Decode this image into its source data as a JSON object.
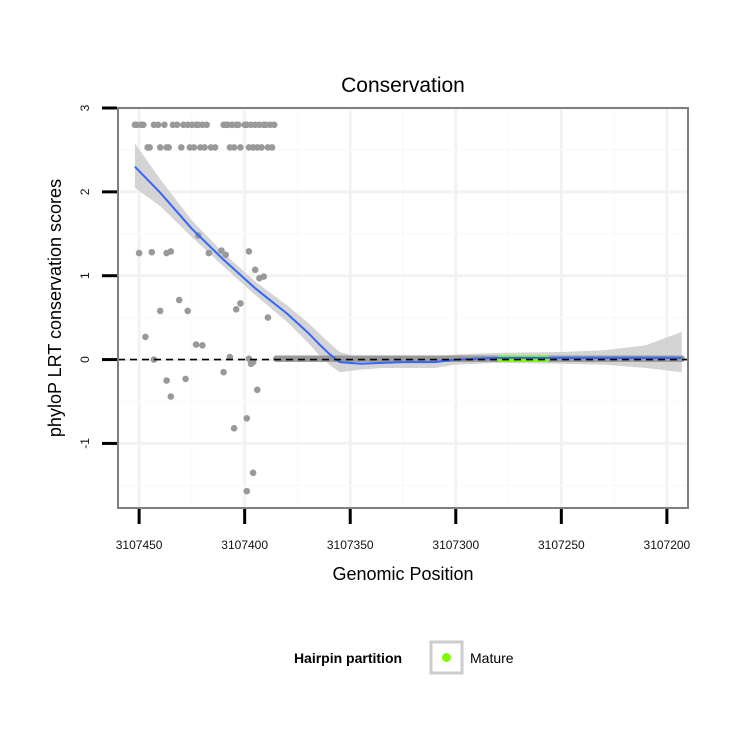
{
  "chart_data": {
    "type": "scatter",
    "title": "Conservation",
    "xlabel": "Genomic Position",
    "ylabel": "phyloP LRT conservation scores",
    "x_reversed": true,
    "xlim": [
      3107460,
      3107190
    ],
    "ylim": [
      -1.77,
      3.0
    ],
    "x_ticks": [
      3107450,
      3107400,
      3107350,
      3107300,
      3107250,
      3107200
    ],
    "x_tick_labels": [
      "3107450",
      "3107400",
      "3107350",
      "3107300",
      "3107250",
      "3107200"
    ],
    "y_ticks": [
      -1,
      0,
      1,
      2,
      3
    ],
    "y_tick_labels": [
      "-1",
      "0",
      "1",
      "2",
      "3"
    ],
    "reference_line": {
      "y": 0,
      "style": "dashed",
      "color": "#000000"
    },
    "colors": {
      "points": "#999999",
      "mature_points": "#7cfc00",
      "smooth_line": "#3366ff",
      "confidence_band": "#cccccc",
      "panel_border": "#7f7f7f",
      "grid_major": "#f2f2f2",
      "grid_minor": "#fafafa"
    },
    "points": [
      [
        3107452,
        2.8
      ],
      [
        3107451,
        2.8
      ],
      [
        3107449,
        2.8
      ],
      [
        3107448,
        2.8
      ],
      [
        3107446,
        2.53
      ],
      [
        3107445,
        2.53
      ],
      [
        3107443,
        2.8
      ],
      [
        3107441,
        2.8
      ],
      [
        3107440,
        2.53
      ],
      [
        3107438,
        2.8
      ],
      [
        3107437,
        2.53
      ],
      [
        3107436,
        2.53
      ],
      [
        3107434,
        2.8
      ],
      [
        3107432,
        2.8
      ],
      [
        3107430,
        2.53
      ],
      [
        3107429,
        2.8
      ],
      [
        3107427,
        2.8
      ],
      [
        3107426,
        2.53
      ],
      [
        3107425,
        2.8
      ],
      [
        3107424,
        2.53
      ],
      [
        3107423,
        2.8
      ],
      [
        3107422,
        2.8
      ],
      [
        3107421,
        2.53
      ],
      [
        3107420,
        2.8
      ],
      [
        3107419,
        2.53
      ],
      [
        3107418,
        2.8
      ],
      [
        3107416,
        2.53
      ],
      [
        3107414,
        2.53
      ],
      [
        3107410,
        2.8
      ],
      [
        3107409,
        2.8
      ],
      [
        3107408,
        2.8
      ],
      [
        3107407,
        2.53
      ],
      [
        3107406,
        2.8
      ],
      [
        3107405,
        2.53
      ],
      [
        3107404,
        2.8
      ],
      [
        3107403,
        2.8
      ],
      [
        3107402,
        2.53
      ],
      [
        3107400,
        2.8
      ],
      [
        3107399,
        2.8
      ],
      [
        3107398,
        2.53
      ],
      [
        3107397,
        2.8
      ],
      [
        3107396,
        2.53
      ],
      [
        3107395,
        2.8
      ],
      [
        3107394,
        2.53
      ],
      [
        3107393,
        2.8
      ],
      [
        3107392,
        2.53
      ],
      [
        3107391,
        2.8
      ],
      [
        3107390,
        2.8
      ],
      [
        3107389,
        2.53
      ],
      [
        3107388,
        2.8
      ],
      [
        3107387,
        2.53
      ],
      [
        3107386,
        2.8
      ],
      [
        3107450,
        1.27
      ],
      [
        3107444,
        1.28
      ],
      [
        3107437,
        1.27
      ],
      [
        3107435,
        1.29
      ],
      [
        3107417,
        1.27
      ],
      [
        3107409,
        1.25
      ],
      [
        3107398,
        1.29
      ],
      [
        3107422,
        1.48
      ],
      [
        3107411,
        1.3
      ],
      [
        3107395,
        1.07
      ],
      [
        3107393,
        0.97
      ],
      [
        3107391,
        0.99
      ],
      [
        3107447,
        0.27
      ],
      [
        3107440,
        0.58
      ],
      [
        3107431,
        0.71
      ],
      [
        3107427,
        0.58
      ],
      [
        3107423,
        0.18
      ],
      [
        3107420,
        0.17
      ],
      [
        3107404,
        0.6
      ],
      [
        3107402,
        0.67
      ],
      [
        3107389,
        0.5
      ],
      [
        3107443,
        0.0
      ],
      [
        3107437,
        -0.25
      ],
      [
        3107435,
        -0.44
      ],
      [
        3107428,
        -0.23
      ],
      [
        3107410,
        -0.15
      ],
      [
        3107407,
        0.03
      ],
      [
        3107398,
        0.01
      ],
      [
        3107397,
        -0.05
      ],
      [
        3107396,
        -0.03
      ],
      [
        3107394,
        -0.36
      ],
      [
        3107405,
        -0.82
      ],
      [
        3107399,
        -0.7
      ],
      [
        3107396,
        -1.35
      ],
      [
        3107399,
        -1.57
      ]
    ],
    "flat_segment": {
      "x_from": 3107385,
      "x_to": 3107193,
      "y": 0.01
    },
    "mature_segment": {
      "x_from": 3107279,
      "x_to": 3107257,
      "y": 0.01
    },
    "smooth": {
      "x": [
        3107452,
        3107440,
        3107425,
        3107410,
        3107395,
        3107380,
        3107370,
        3107365,
        3107360,
        3107355,
        3107345,
        3107335,
        3107325,
        3107310,
        3107300,
        3107280,
        3107250,
        3107230,
        3107210,
        3107193
      ],
      "y": [
        2.3,
        1.99,
        1.56,
        1.19,
        0.85,
        0.55,
        0.32,
        0.19,
        0.07,
        -0.03,
        -0.05,
        -0.04,
        -0.03,
        -0.03,
        0.0,
        0.02,
        0.02,
        0.02,
        0.02,
        0.02
      ],
      "lower": [
        2.05,
        1.83,
        1.46,
        1.11,
        0.77,
        0.45,
        0.2,
        0.06,
        -0.06,
        -0.15,
        -0.12,
        -0.1,
        -0.1,
        -0.1,
        -0.06,
        -0.04,
        -0.05,
        -0.06,
        -0.1,
        -0.15
      ],
      "upper": [
        2.58,
        2.15,
        1.66,
        1.27,
        0.93,
        0.65,
        0.44,
        0.32,
        0.2,
        0.09,
        0.02,
        0.02,
        0.04,
        0.04,
        0.06,
        0.08,
        0.09,
        0.11,
        0.17,
        0.33
      ]
    },
    "legend": {
      "title": "Hairpin partition",
      "entries": [
        {
          "label": "Mature",
          "color": "#7cfc00"
        }
      ],
      "position": "bottom"
    }
  }
}
